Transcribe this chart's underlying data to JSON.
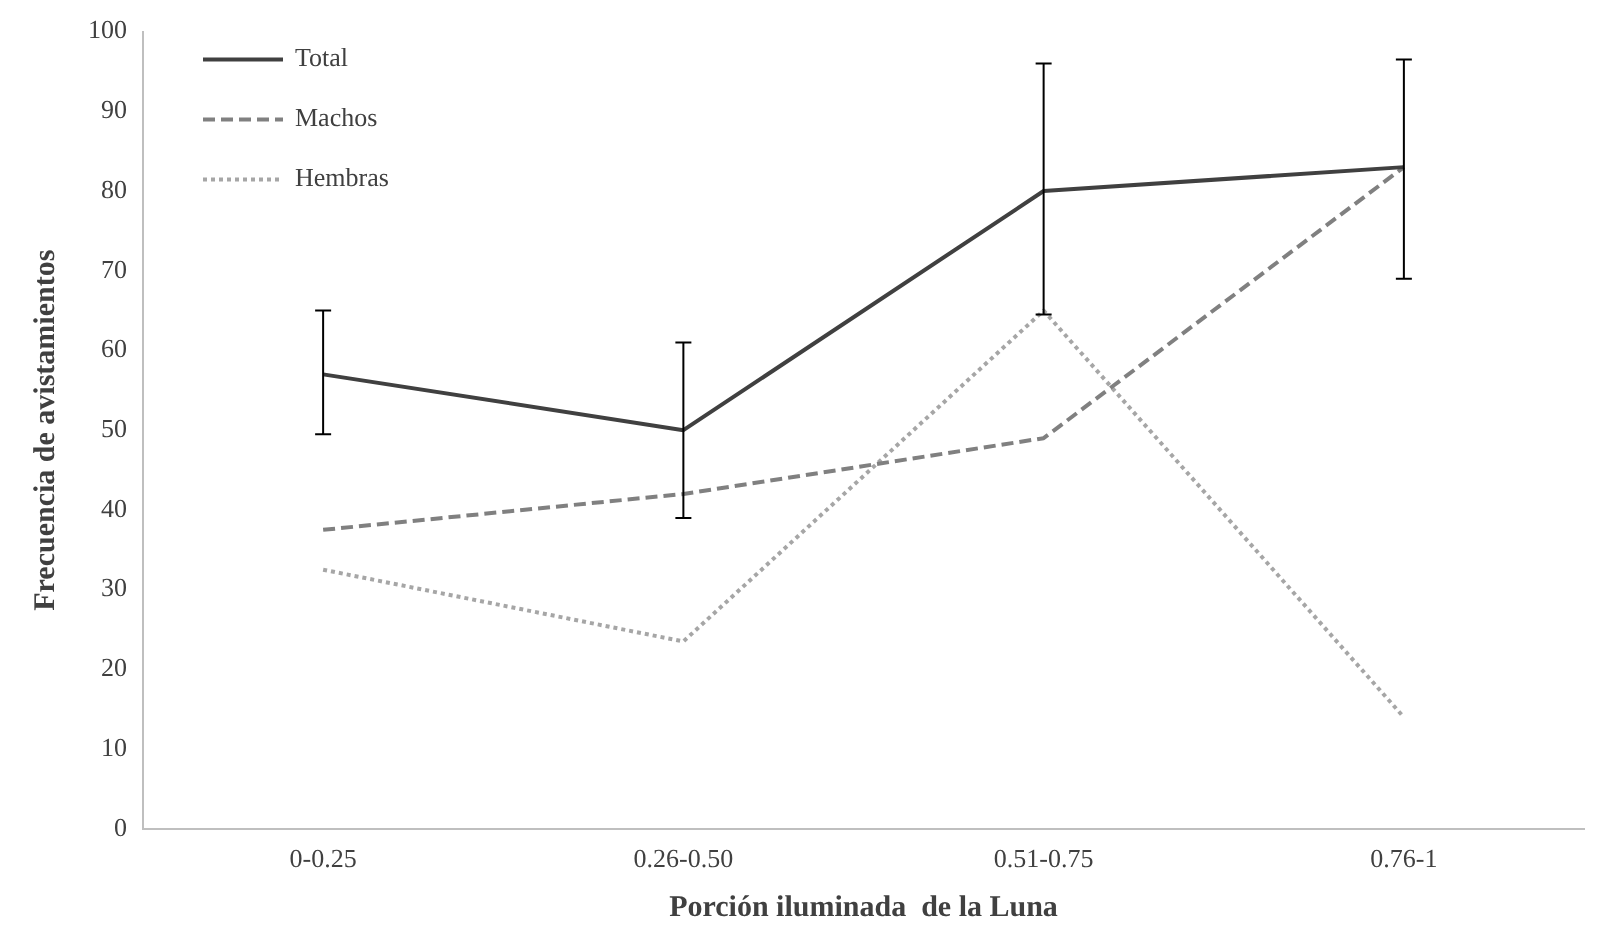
{
  "chart_data": {
    "type": "line",
    "xlabel": "Porción iluminada  de la Luna",
    "ylabel": "Frecuencia de avistamientos",
    "categories": [
      "0-0.25",
      "0.26-0.50",
      "0.51-0.75",
      "0.76-1"
    ],
    "series": [
      {
        "name": "Total",
        "color": "#404040",
        "line_style": "solid",
        "values": [
          57,
          50,
          80,
          83
        ],
        "errors": [
          [
            49.5,
            65
          ],
          [
            39,
            61
          ],
          [
            64.5,
            96
          ],
          [
            69,
            96.5
          ]
        ]
      },
      {
        "name": "Machos",
        "color": "#808080",
        "line_style": "dashed",
        "values": [
          37.5,
          42,
          49,
          83
        ]
      },
      {
        "name": "Hembras",
        "color": "#a6a6a6",
        "line_style": "dotted",
        "values": [
          32.5,
          23.5,
          65,
          14
        ]
      }
    ],
    "ylim": [
      0,
      100
    ],
    "yticks": [
      0,
      10,
      20,
      30,
      40,
      50,
      60,
      70,
      80,
      90,
      100
    ],
    "grid": false,
    "legend": "top left",
    "marker": "none"
  }
}
